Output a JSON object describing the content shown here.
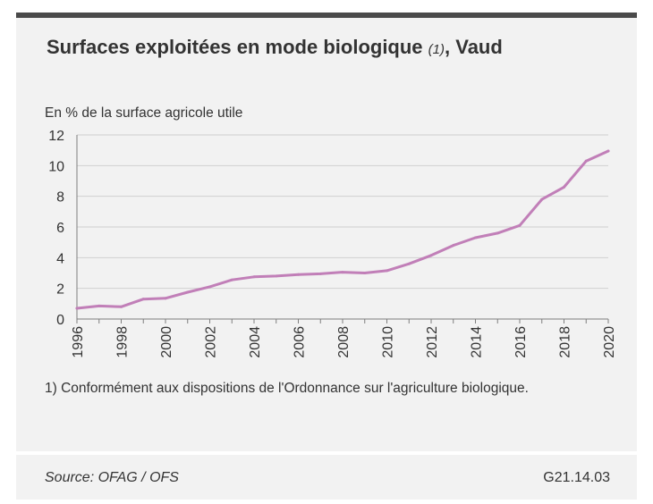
{
  "header": {
    "title_main": "Surfaces exploitées en mode biologique",
    "title_note": "(1)",
    "title_suffix": ", Vaud"
  },
  "footnote": "1) Conformément aux dispositions de l'Ordonnance sur l'agriculture biologique.",
  "footer": {
    "source": "Source: OFAG / OFS",
    "code": "G21.14.03"
  },
  "colors": {
    "line": "#c17fb8",
    "grid": "#cfcfcf",
    "background": "#f2f2f2",
    "topbar": "#4a4a4a"
  },
  "chart_data": {
    "type": "line",
    "title": "Surfaces exploitées en mode biologique (1), Vaud",
    "xlabel": "",
    "ylabel": "En % de la surface agricole utile",
    "x": [
      1996,
      1997,
      1998,
      1999,
      2000,
      2001,
      2002,
      2003,
      2004,
      2005,
      2006,
      2007,
      2008,
      2009,
      2010,
      2011,
      2012,
      2013,
      2014,
      2015,
      2016,
      2017,
      2018,
      2019,
      2020
    ],
    "series": [
      {
        "values": [
          0.7,
          0.85,
          0.8,
          1.3,
          1.35,
          1.75,
          2.1,
          2.55,
          2.75,
          2.8,
          2.9,
          2.95,
          3.05,
          3.0,
          3.15,
          3.6,
          4.15,
          4.8,
          5.3,
          5.6,
          6.1,
          7.8,
          8.6,
          10.3,
          10.95
        ]
      }
    ],
    "xlim": [
      1996,
      2020
    ],
    "ylim": [
      0,
      12
    ],
    "xticks": [
      "1996",
      "1998",
      "2000",
      "2002",
      "2004",
      "2006",
      "2008",
      "2010",
      "2012",
      "2014",
      "2016",
      "2018",
      "2020"
    ],
    "yticks": [
      "0",
      "2",
      "4",
      "6",
      "8",
      "10",
      "12"
    ],
    "grid": true,
    "legend": "none"
  }
}
